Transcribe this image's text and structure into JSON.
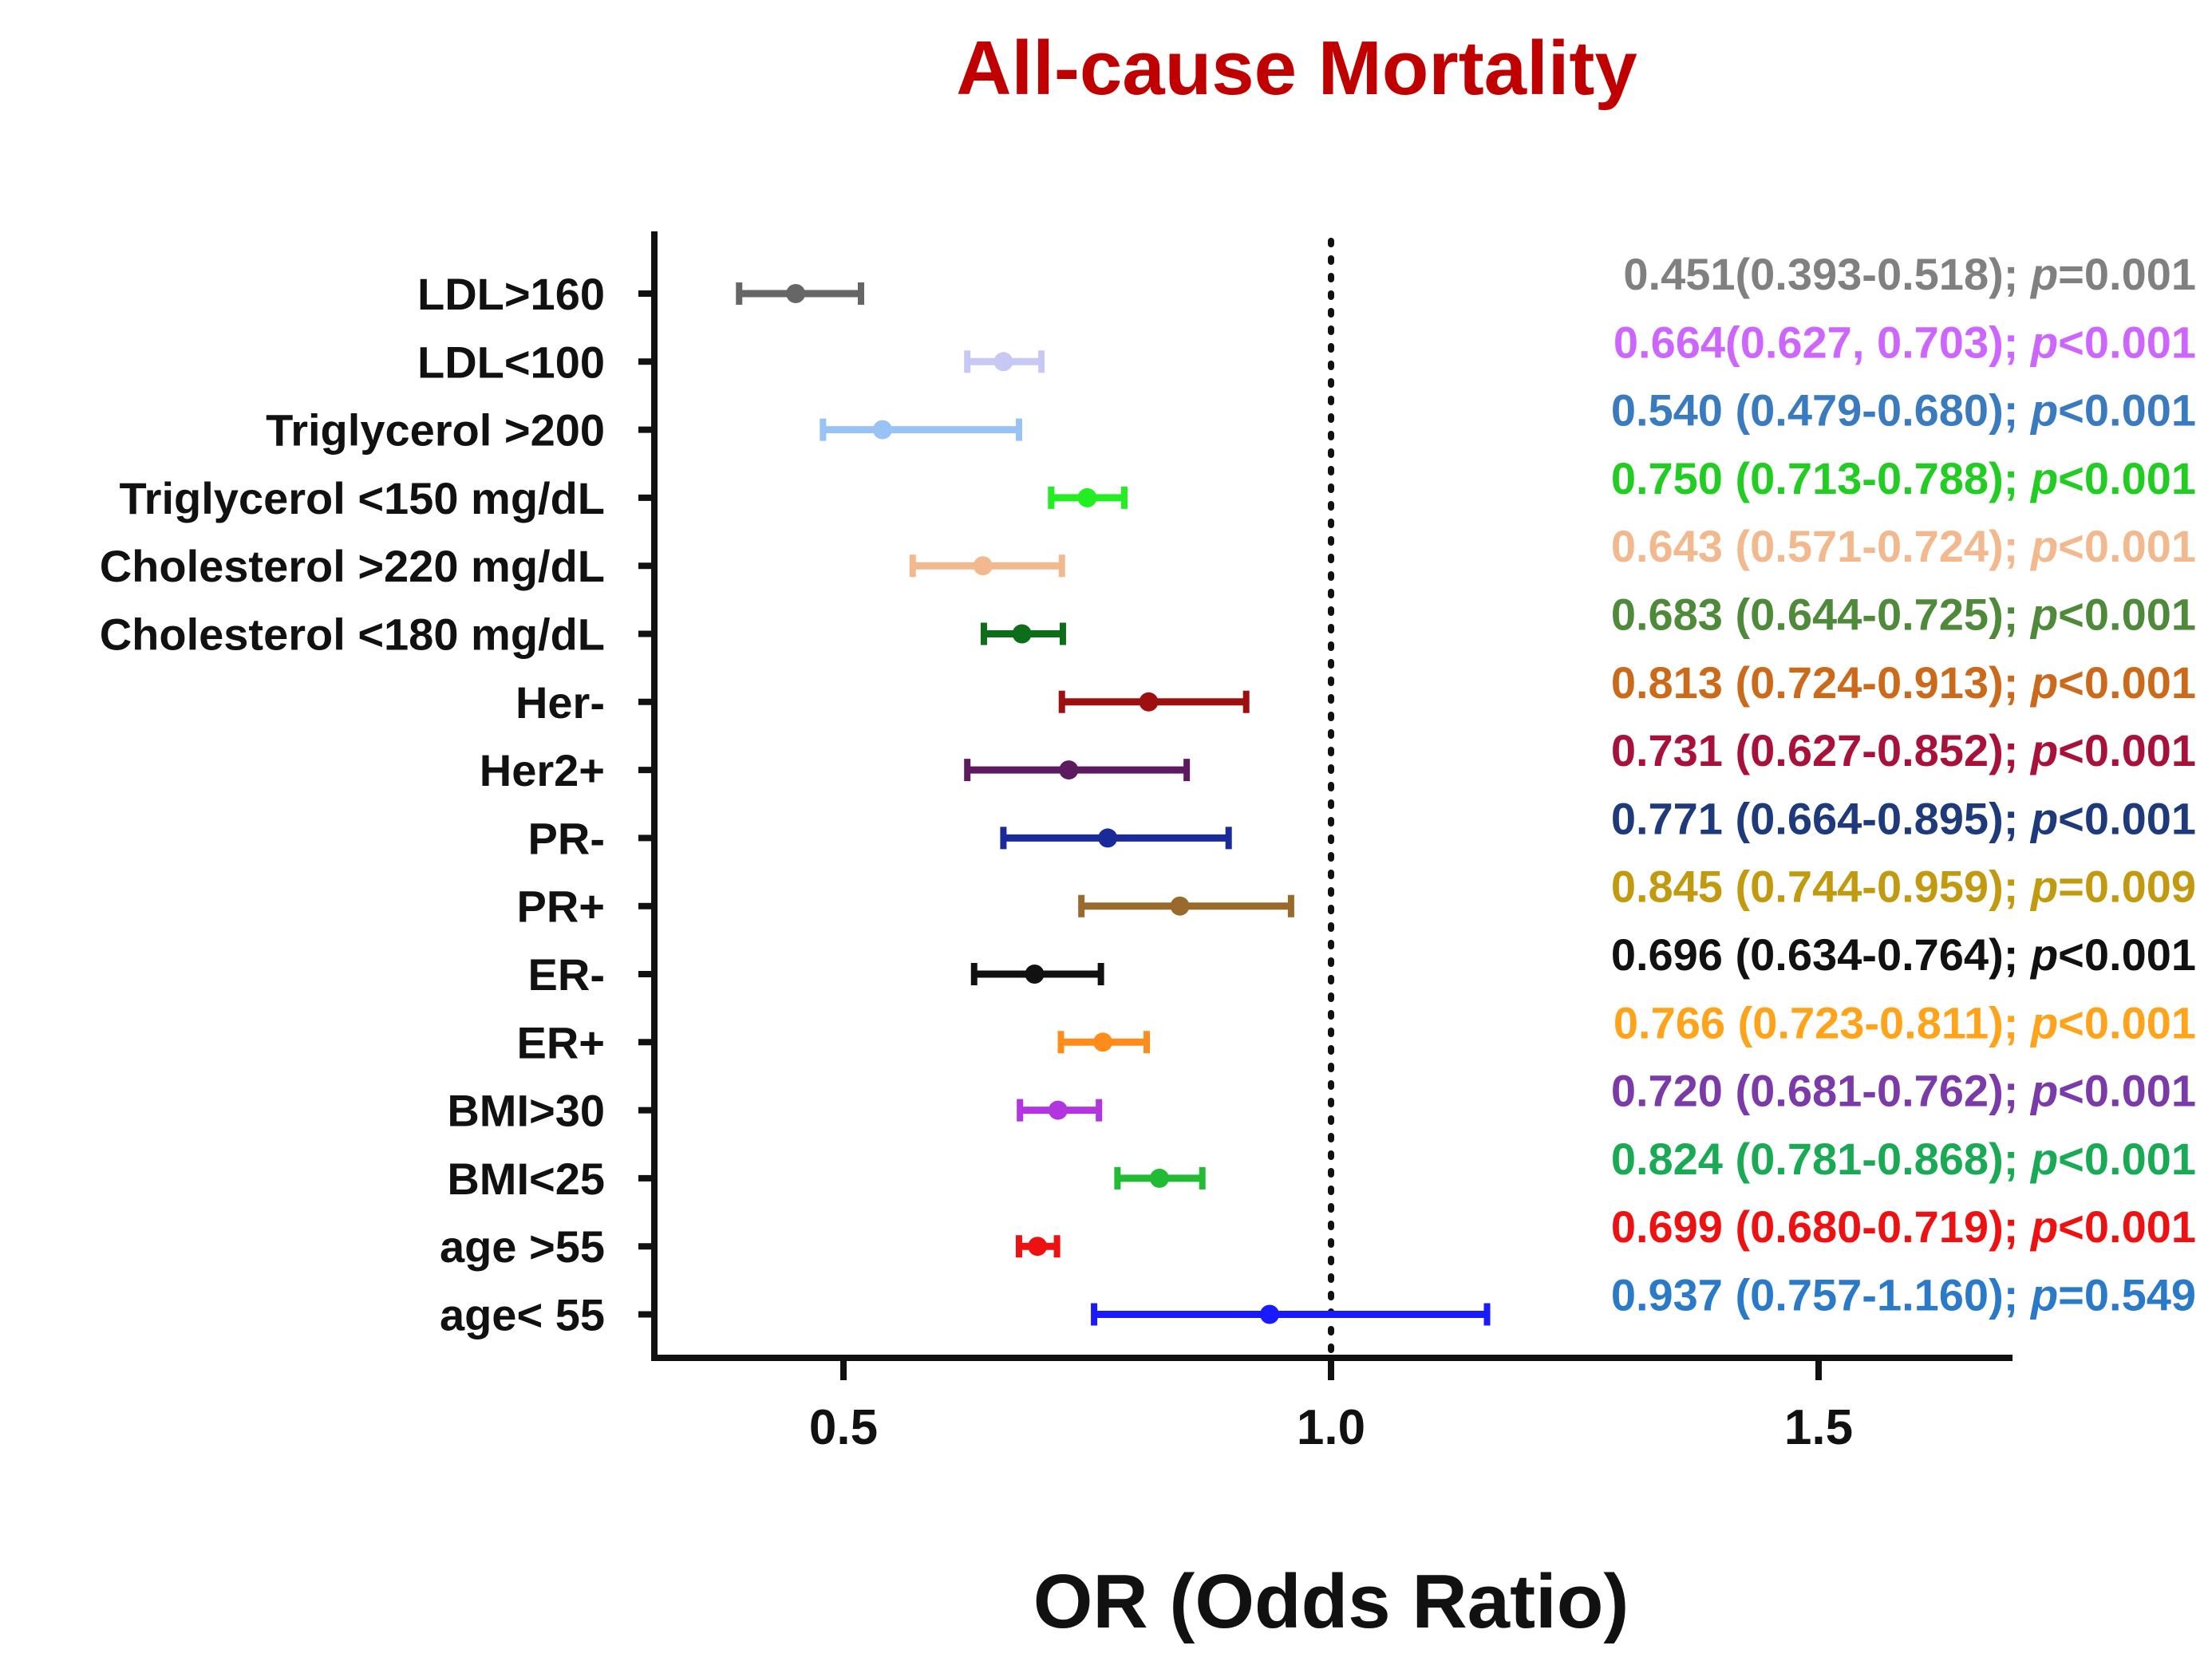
{
  "chart_data": {
    "type": "forest",
    "title": "All-cause Mortality",
    "title_color": "#c00000",
    "xlabel": "OR (Odds Ratio)",
    "ylabel": "",
    "xlim": [
      0.3,
      1.7
    ],
    "xticks": [
      0.5,
      1.0,
      1.5
    ],
    "xtick_labels": [
      "0.5",
      "1.0",
      "1.5"
    ],
    "reference_line": 1.0,
    "grid": false,
    "rows": [
      {
        "label": "LDL>160",
        "or": 0.451,
        "lo": 0.393,
        "hi": 0.518,
        "color": "#666666",
        "p_prefix": "; ",
        "p_op": "=0.001",
        "ci_text": "0.451(0.393-0.518)",
        "text_color": "#808080"
      },
      {
        "label": "LDL<100",
        "or": 0.664,
        "lo": 0.627,
        "hi": 0.703,
        "color": "#c8c8f5",
        "p_prefix": "; ",
        "p_op": "<0.001",
        "ci_text": "0.664(0.627, 0.703)",
        "text_color": "#cc66ff"
      },
      {
        "label": "Triglycerol >200",
        "or": 0.54,
        "lo": 0.479,
        "hi": 0.68,
        "color": "#99c2f5",
        "p_prefix": "; ",
        "p_op": "<0.001",
        "ci_text": "0.540 (0.479-0.680)",
        "text_color": "#3a7bbf"
      },
      {
        "label": "Triglycerol <150 mg/dL",
        "or": 0.75,
        "lo": 0.713,
        "hi": 0.788,
        "color": "#22ee22",
        "p_prefix": "; ",
        "p_op": "<0.001",
        "ci_text": "0.750 (0.713-0.788)",
        "text_color": "#22cc22"
      },
      {
        "label": "Cholesterol >220 mg/dL",
        "or": 0.643,
        "lo": 0.571,
        "hi": 0.724,
        "color": "#f2b98e",
        "p_prefix": "; ",
        "p_op": "<0.001",
        "ci_text": "0.643 (0.571-0.724)",
        "text_color": "#f2b98e"
      },
      {
        "label": "Cholesterol <180 mg/dL",
        "or": 0.683,
        "lo": 0.644,
        "hi": 0.725,
        "color": "#0d6e1a",
        "p_prefix": "; ",
        "p_op": "<0.001",
        "ci_text": "0.683 (0.644-0.725)",
        "text_color": "#4e8a3a"
      },
      {
        "label": "Her-",
        "or": 0.813,
        "lo": 0.724,
        "hi": 0.913,
        "color": "#9e1010",
        "p_prefix": "; ",
        "p_op": "<0.001",
        "ci_text": "0.813 (0.724-0.913)",
        "text_color": "#cc6a1c"
      },
      {
        "label": "Her2+",
        "or": 0.731,
        "lo": 0.627,
        "hi": 0.852,
        "color": "#5e1a5e",
        "p_prefix": "; ",
        "p_op": "<0.001",
        "ci_text": "0.731 (0.627-0.852)",
        "text_color": "#a8123a"
      },
      {
        "label": "PR-",
        "or": 0.771,
        "lo": 0.664,
        "hi": 0.895,
        "color": "#1a2a99",
        "p_prefix": "; ",
        "p_op": "<0.001",
        "ci_text": "0.771 (0.664-0.895)",
        "text_color": "#1f3a7a"
      },
      {
        "label": "PR+",
        "or": 0.845,
        "lo": 0.744,
        "hi": 0.959,
        "color": "#9a6a2c",
        "p_prefix": "; ",
        "p_op": "=0.009",
        "ci_text": "0.845 (0.744-0.959)",
        "text_color": "#c29a10"
      },
      {
        "label": "ER-",
        "or": 0.696,
        "lo": 0.634,
        "hi": 0.764,
        "color": "#111111",
        "p_prefix": "; ",
        "p_op": "<0.001",
        "ci_text": "0.696 (0.634-0.764)",
        "text_color": "#111111"
      },
      {
        "label": "ER+",
        "or": 0.766,
        "lo": 0.723,
        "hi": 0.811,
        "color": "#ff8c1a",
        "p_prefix": "; ",
        "p_op": "<0.001",
        "ci_text": "0.766 (0.723-0.811)",
        "text_color": "#ffa31a"
      },
      {
        "label": "BMI>30",
        "or": 0.72,
        "lo": 0.681,
        "hi": 0.762,
        "color": "#b235e0",
        "p_prefix": "; ",
        "p_op": "<0.001",
        "ci_text": "0.720 (0.681-0.762)",
        "text_color": "#7a3aa8"
      },
      {
        "label": "BMI<25",
        "or": 0.824,
        "lo": 0.781,
        "hi": 0.868,
        "color": "#22bb33",
        "p_prefix": "; ",
        "p_op": "<0.001",
        "ci_text": "0.824 (0.781-0.868)",
        "text_color": "#1aaa55"
      },
      {
        "label": "age >55",
        "or": 0.699,
        "lo": 0.68,
        "hi": 0.719,
        "color": "#ee1111",
        "p_prefix": "; ",
        "p_op": "<0.001",
        "ci_text": "0.699 (0.680-0.719)",
        "text_color": "#ee1111"
      },
      {
        "label": "age< 55",
        "or": 0.937,
        "lo": 0.757,
        "hi": 1.16,
        "color": "#1a1aff",
        "p_prefix": "; ",
        "p_op": "=0.549",
        "ci_text": "0.937 (0.757-1.160)",
        "text_color": "#2a7ac8"
      }
    ]
  }
}
